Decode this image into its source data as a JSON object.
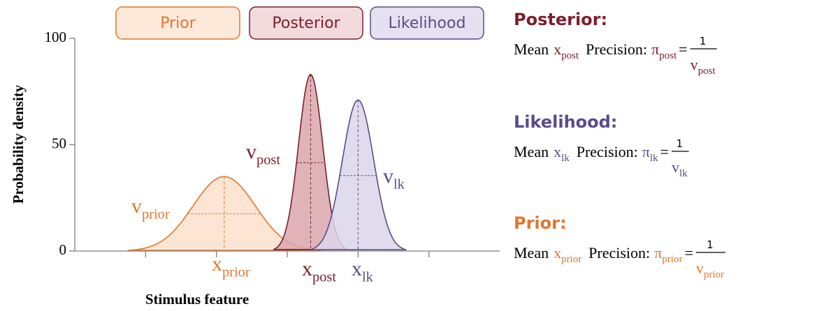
{
  "chart_data": {
    "type": "gaussian",
    "ylabel": "Probability density",
    "xlabel": "Stimulus feature",
    "xlim": [
      0,
      6
    ],
    "xticks": [
      1,
      2,
      3,
      4,
      5
    ],
    "ylim": [
      0,
      100
    ],
    "yticks": [
      0,
      50,
      100
    ],
    "series": [
      {
        "name": "Prior",
        "color": "#e0772f",
        "fill": "#fbe1cb",
        "legend_fill": "#fde9d9",
        "mean": 2.11,
        "sd": 0.44,
        "peak": 35,
        "mean_label": {
          "base": "x",
          "sub": "prior"
        },
        "var_label": {
          "base": "v",
          "sub": "prior"
        },
        "heading": "Prior:"
      },
      {
        "name": "Posterior",
        "color": "#7b1f2c",
        "fill": "#d9a6ab",
        "legend_fill": "#f2dadd",
        "mean": 3.33,
        "sd": 0.17,
        "peak": 83,
        "mean_label": {
          "base": "x",
          "sub": "post"
        },
        "var_label": {
          "base": "v",
          "sub": "post"
        },
        "heading": "Posterior:"
      },
      {
        "name": "Likelihood",
        "color": "#5b4b8a",
        "fill": "#dcd6ea",
        "legend_fill": "#e6e1f0",
        "mean": 4.0,
        "sd": 0.22,
        "peak": 71,
        "mean_label": {
          "base": "x",
          "sub": "lk"
        },
        "var_label": {
          "base": "v",
          "sub": "lk"
        },
        "heading": "Likelihood:"
      }
    ],
    "formula": {
      "mean": "Mean",
      "precision": "Precision:",
      "symbol": "π",
      "equals": "=",
      "numerator": "1"
    }
  }
}
